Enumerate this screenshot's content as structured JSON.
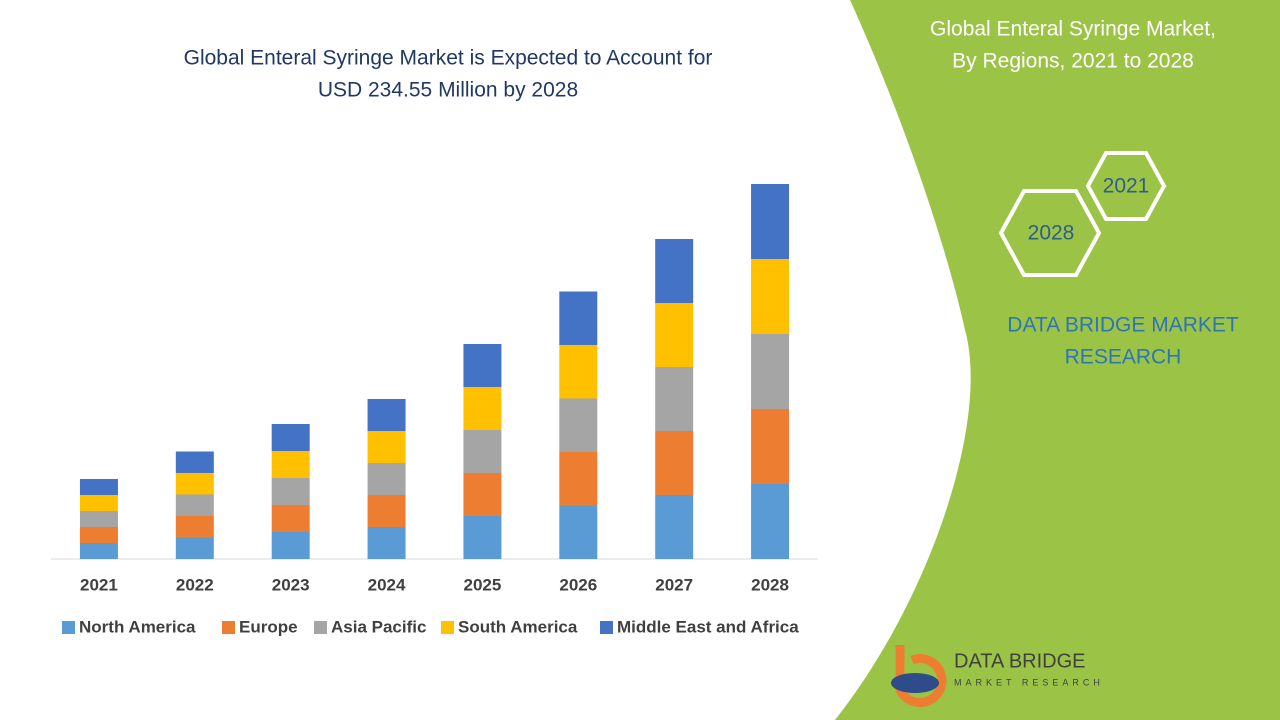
{
  "chart_data": {
    "type": "stacked-bar",
    "title": [
      "Global Enteral Syringe Market is Expected to Account for",
      "USD 234.55 Million by 2028"
    ],
    "categories": [
      "2021",
      "2022",
      "2023",
      "2024",
      "2025",
      "2026",
      "2027",
      "2028"
    ],
    "series": [
      {
        "name": "North America",
        "color": "#5b9bd5",
        "values": [
          16,
          21.5,
          27,
          32,
          43,
          53.5,
          64,
          75
        ]
      },
      {
        "name": "Europe",
        "color": "#ed7d31",
        "values": [
          16,
          21.5,
          27,
          32,
          43,
          53.5,
          64,
          75
        ]
      },
      {
        "name": "Asia Pacific",
        "color": "#a5a5a5",
        "values": [
          16,
          21.5,
          27,
          32,
          43,
          53.5,
          64,
          75
        ]
      },
      {
        "name": "South America",
        "color": "#ffc000",
        "values": [
          16,
          21.5,
          27,
          32,
          43,
          53.5,
          64,
          75
        ]
      },
      {
        "name": "Middle East and Africa",
        "color": "#4472c4",
        "values": [
          16,
          21.5,
          27,
          32,
          43,
          53.5,
          64,
          75
        ]
      }
    ],
    "ylim": [
      0,
      400
    ]
  },
  "panel": {
    "title": [
      "Global Enteral Syringe Market,",
      "By Regions, 2021 to 2028"
    ],
    "hex_labels": [
      "2021",
      "2028"
    ],
    "brand": [
      "DATA BRIDGE MARKET",
      "RESEARCH"
    ],
    "logo": [
      "DATA BRIDGE",
      "MARKET RESEARCH"
    ]
  }
}
